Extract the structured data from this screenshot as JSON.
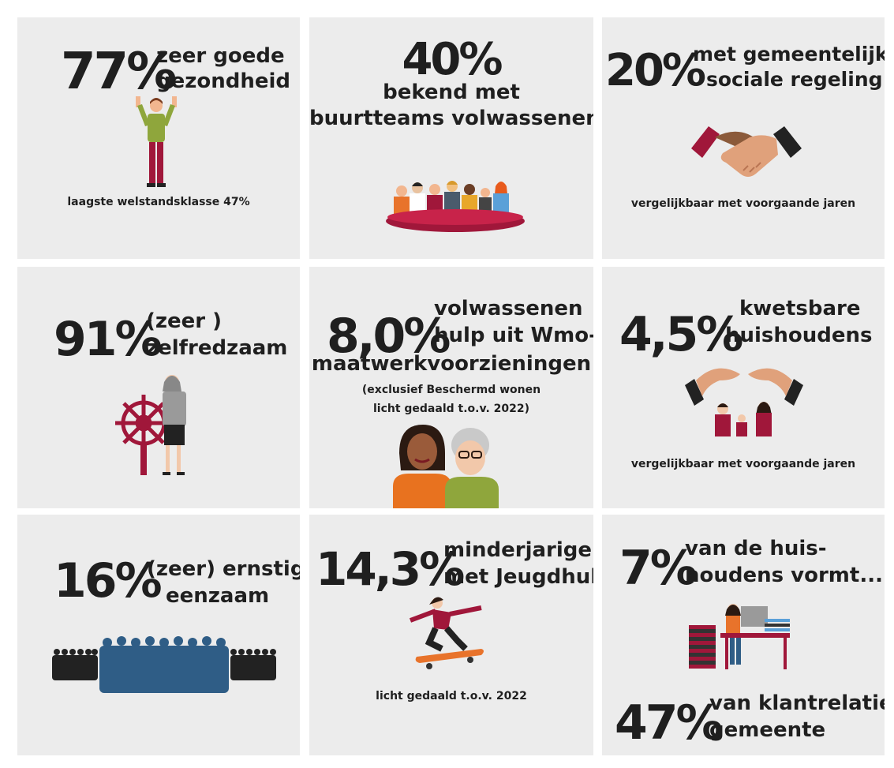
{
  "tiles": [
    {
      "stat": "77%",
      "label_1": "zeer goede",
      "label_2": "gezondheid",
      "note": "laagste welstandsklasse 47%",
      "icon": "person-raising-arms-icon"
    },
    {
      "stat": "40%",
      "label_1": "bekend met",
      "label_2": "buurtteams volwassenen",
      "icon": "group-at-table-icon"
    },
    {
      "stat": "20%",
      "label_1": "met gemeentelijke",
      "label_2": "sociale regeling",
      "note": "vergelijkbaar met voorgaande jaren",
      "icon": "handshake-icon"
    },
    {
      "stat": "91%",
      "label_1": "(zeer )",
      "label_2": "zelfredzaam",
      "icon": "woman-with-ship-wheel-icon"
    },
    {
      "stat": "8,0%",
      "label_1": "volwassenen",
      "label_2": "hulp uit Wmo-",
      "label_3": "maatwerkvoorzieningen",
      "note_1": "(exclusief Beschermd wonen",
      "note_2": "licht gedaald t.o.v. 2022)",
      "icon": "two-women-icon"
    },
    {
      "stat": "4,5%",
      "label_1": "kwetsbare",
      "label_2": "huishoudens",
      "note": "vergelijkbaar met voorgaande jaren",
      "icon": "protecting-hands-family-icon"
    },
    {
      "stat": "16%",
      "label_1": "(zeer) ernstig",
      "label_2": "eenzaam",
      "icon": "crowd-icon"
    },
    {
      "stat": "14,3%",
      "label_1": "minderjarigen",
      "label_2": "met Jeugdhulp",
      "note": "licht gedaald t.o.v. 2022",
      "icon": "skateboarder-icon"
    },
    {
      "stat": "7%",
      "label_1": "van de huis-",
      "label_2": "houdens vormt...",
      "stat_2": "47%",
      "label_3": "van klantrelaties",
      "label_4": "gemeente",
      "icon": "office-desk-worker-icon"
    }
  ],
  "colors": {
    "card_bg": "#ececec",
    "accent_red": "#a0173a",
    "text": "#1f1f1f",
    "blue": "#2f5d86"
  }
}
